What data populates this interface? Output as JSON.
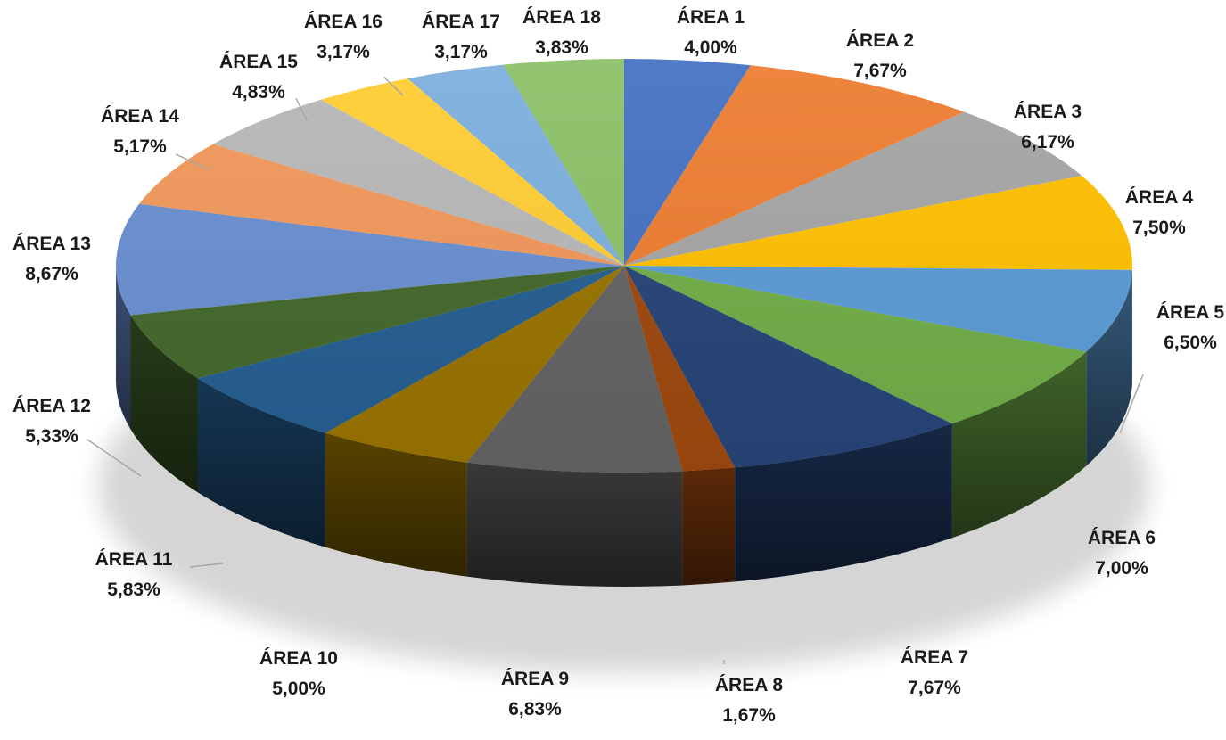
{
  "chart_data": {
    "type": "pie",
    "style": "3d-exploded-perspective",
    "title": "",
    "legend": "none",
    "labels_position": "outside-with-leader-lines",
    "slices": [
      {
        "label": "ÁREA 1",
        "value": 4.0,
        "display": "4,00%",
        "color": "#4472C4"
      },
      {
        "label": "ÁREA 2",
        "value": 7.67,
        "display": "7,67%",
        "color": "#ED7D31"
      },
      {
        "label": "ÁREA 3",
        "value": 6.17,
        "display": "6,17%",
        "color": "#A5A5A5"
      },
      {
        "label": "ÁREA 4",
        "value": 7.5,
        "display": "7,50%",
        "color": "#FFC000"
      },
      {
        "label": "ÁREA 5",
        "value": 6.5,
        "display": "6,50%",
        "color": "#5B9BD5"
      },
      {
        "label": "ÁREA 6",
        "value": 7.0,
        "display": "7,00%",
        "color": "#70AD47"
      },
      {
        "label": "ÁREA 7",
        "value": 7.67,
        "display": "7,67%",
        "color": "#264478"
      },
      {
        "label": "ÁREA 8",
        "value": 1.67,
        "display": "1,67%",
        "color": "#9E480E"
      },
      {
        "label": "ÁREA 9",
        "value": 6.83,
        "display": "6,83%",
        "color": "#636363"
      },
      {
        "label": "ÁREA 10",
        "value": 5.0,
        "display": "5,00%",
        "color": "#997300"
      },
      {
        "label": "ÁREA 11",
        "value": 5.83,
        "display": "5,83%",
        "color": "#255E91"
      },
      {
        "label": "ÁREA 12",
        "value": 5.33,
        "display": "5,33%",
        "color": "#43682B"
      },
      {
        "label": "ÁREA 13",
        "value": 8.67,
        "display": "8,67%",
        "color": "#698ED0"
      },
      {
        "label": "ÁREA 14",
        "value": 5.17,
        "display": "5,17%",
        "color": "#F1975A"
      },
      {
        "label": "ÁREA 15",
        "value": 4.83,
        "display": "4,83%",
        "color": "#B7B7B7"
      },
      {
        "label": "ÁREA 16",
        "value": 3.17,
        "display": "3,17%",
        "color": "#FFCD33"
      },
      {
        "label": "ÁREA 17",
        "value": 3.17,
        "display": "3,17%",
        "color": "#7CAFDD"
      },
      {
        "label": "ÁREA 18",
        "value": 3.83,
        "display": "3,83%",
        "color": "#8CC168"
      }
    ]
  }
}
